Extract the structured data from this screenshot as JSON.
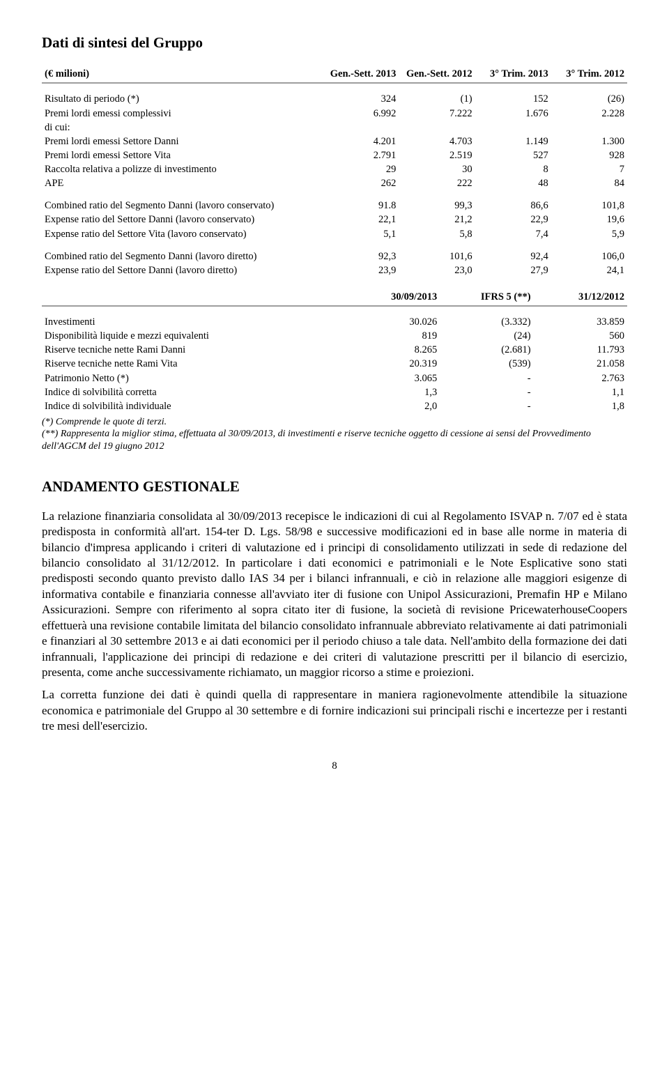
{
  "title": "Dati di sintesi del Gruppo",
  "t1": {
    "unit": "(€ milioni)",
    "headers": [
      "Gen.-Sett. 2013",
      "Gen.-Sett. 2012",
      "3° Trim. 2013",
      "3° Trim. 2012"
    ],
    "rows": [
      {
        "label": "Risultato di periodo (*)",
        "v": [
          "324",
          "(1)",
          "152",
          "(26)"
        ]
      },
      {
        "label": "Premi lordi emessi complessivi",
        "v": [
          "6.992",
          "7.222",
          "1.676",
          "2.228"
        ]
      },
      {
        "label": "di cui:",
        "v": [
          "",
          "",
          "",
          ""
        ]
      },
      {
        "label": "Premi lordi emessi Settore Danni",
        "v": [
          "4.201",
          "4.703",
          "1.149",
          "1.300"
        ]
      },
      {
        "label": "Premi lordi emessi Settore Vita",
        "v": [
          "2.791",
          "2.519",
          "527",
          "928"
        ]
      },
      {
        "label": "Raccolta relativa a polizze di investimento",
        "v": [
          "29",
          "30",
          "8",
          "7"
        ]
      },
      {
        "label": "APE",
        "v": [
          "262",
          "222",
          "48",
          "84"
        ]
      }
    ],
    "rows2": [
      {
        "label": "Combined ratio del Segmento Danni (lavoro conservato)",
        "v": [
          "91.8",
          "99,3",
          "86,6",
          "101,8"
        ]
      },
      {
        "label": "Expense ratio del Settore Danni (lavoro conservato)",
        "v": [
          "22,1",
          "21,2",
          "22,9",
          "19,6"
        ]
      },
      {
        "label": "Expense ratio del Settore Vita (lavoro conservato)",
        "v": [
          "5,1",
          "5,8",
          "7,4",
          "5,9"
        ]
      }
    ],
    "rows3": [
      {
        "label": "Combined ratio del Segmento Danni (lavoro diretto)",
        "v": [
          "92,3",
          "101,6",
          "92,4",
          "106,0"
        ]
      },
      {
        "label": "Expense ratio del Settore Danni (lavoro diretto)",
        "v": [
          "23,9",
          "23,0",
          "27,9",
          "24,1"
        ]
      }
    ]
  },
  "t2": {
    "headers": [
      "30/09/2013",
      "IFRS 5 (**)",
      "31/12/2012"
    ],
    "rows": [
      {
        "label": "Investimenti",
        "v": [
          "30.026",
          "(3.332)",
          "33.859"
        ]
      },
      {
        "label": "Disponibilità liquide e mezzi equivalenti",
        "v": [
          "819",
          "(24)",
          "560"
        ]
      },
      {
        "label": "Riserve tecniche nette Rami Danni",
        "v": [
          "8.265",
          "(2.681)",
          "11.793"
        ]
      },
      {
        "label": "Riserve tecniche nette Rami Vita",
        "v": [
          "20.319",
          "(539)",
          "21.058"
        ]
      },
      {
        "label": "Patrimonio Netto (*)",
        "v": [
          "3.065",
          "-",
          "2.763"
        ]
      },
      {
        "label": "Indice di solvibilità corretta",
        "v": [
          "1,3",
          "-",
          "1,1"
        ]
      },
      {
        "label": "Indice di solvibilità individuale",
        "v": [
          "2,0",
          "-",
          "1,8"
        ]
      }
    ]
  },
  "footnotes": {
    "a": "(*)   Comprende le quote di terzi.",
    "b": "(**) Rappresenta la miglior stima, effettuata al 30/09/2013, di investimenti e riserve tecniche oggetto di cessione ai sensi del Provvedimento dell'AGCM del 19 giugno 2012"
  },
  "section_heading": "ANDAMENTO GESTIONALE",
  "para1": "La relazione finanziaria consolidata al 30/09/2013 recepisce le indicazioni di cui al Regolamento ISVAP n. 7/07 ed è stata predisposta in conformità all'art. 154-ter D. Lgs. 58/98 e successive modificazioni ed in base alle norme in materia di bilancio d'impresa applicando i criteri di valutazione ed i principi di consolidamento utilizzati in sede di redazione del bilancio consolidato al 31/12/2012. In particolare i dati economici e patrimoniali e le Note Esplicative sono stati predisposti secondo quanto previsto dallo IAS 34 per i bilanci infrannuali, e ciò in relazione alle maggiori esigenze di informativa contabile e finanziaria connesse all'avviato iter di fusione con Unipol Assicurazioni, Premafin HP e Milano Assicurazioni. Sempre con riferimento al sopra citato iter di fusione, la società di revisione PricewaterhouseCoopers effettuerà una revisione contabile limitata del bilancio consolidato infrannuale abbreviato relativamente ai dati patrimoniali e finanziari al 30 settembre 2013 e ai dati economici per il periodo chiuso a tale data. Nell'ambito della formazione dei dati infrannuali, l'applicazione dei principi di redazione e dei criteri di valutazione prescritti per il bilancio di esercizio, presenta, come anche successivamente richiamato, un maggior ricorso a stime e proiezioni.",
  "para2": "La corretta funzione dei dati è quindi quella di rappresentare in maniera ragionevolmente attendibile la situazione economica e patrimoniale del Gruppo al 30 settembre e di fornire indicazioni sui principali rischi e incertezze per i restanti tre mesi dell'esercizio.",
  "page_number": "8"
}
